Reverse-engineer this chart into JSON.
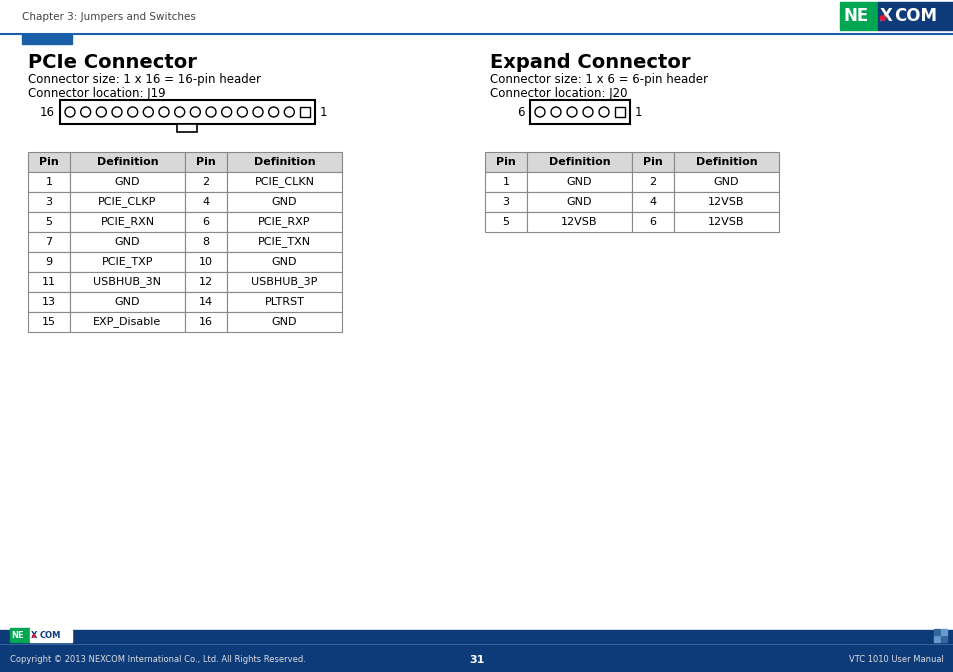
{
  "page_header": "Chapter 3: Jumpers and Switches",
  "page_number": "31",
  "footer_text": "Copyright © 2013 NEXCOM International Co., Ltd. All Rights Reserved.",
  "footer_right": "VTC 1010 User Manual",
  "header_bar_color": "#1a5fa8",
  "footer_bar_color": "#0d3b7a",
  "pcie_title": "PCIe Connector",
  "pcie_size": "Connector size: 1 x 16 = 16-pin header",
  "pcie_location": "Connector location: J19",
  "expand_title": "Expand Connector",
  "expand_size": "Connector size: 1 x 6 = 6-pin header",
  "expand_location": "Connector location: J20",
  "pcie_table_headers": [
    "Pin",
    "Definition",
    "Pin",
    "Definition"
  ],
  "pcie_table_rows": [
    [
      "1",
      "GND",
      "2",
      "PCIE_CLKN"
    ],
    [
      "3",
      "PCIE_CLKP",
      "4",
      "GND"
    ],
    [
      "5",
      "PCIE_RXN",
      "6",
      "PCIE_RXP"
    ],
    [
      "7",
      "GND",
      "8",
      "PCIE_TXN"
    ],
    [
      "9",
      "PCIE_TXP",
      "10",
      "GND"
    ],
    [
      "11",
      "USBHUB_3N",
      "12",
      "USBHUB_3P"
    ],
    [
      "13",
      "GND",
      "14",
      "PLTRST"
    ],
    [
      "15",
      "EXP_Disable",
      "16",
      "GND"
    ]
  ],
  "expand_table_headers": [
    "Pin",
    "Definition",
    "Pin",
    "Definition"
  ],
  "expand_table_rows": [
    [
      "1",
      "GND",
      "2",
      "GND"
    ],
    [
      "3",
      "GND",
      "4",
      "12VSB"
    ],
    [
      "5",
      "12VSB",
      "6",
      "12VSB"
    ]
  ],
  "bg_color": "#ffffff",
  "table_header_bg": "#d8d8d8",
  "table_border_color": "#888888",
  "text_color": "#000000",
  "nexcom_green": "#00a651",
  "nexcom_blue": "#0d3b7a",
  "nexcom_red": "#e31837",
  "accent_bar_color": "#1a5fa8",
  "accent_square_color": "#1a5fa8"
}
